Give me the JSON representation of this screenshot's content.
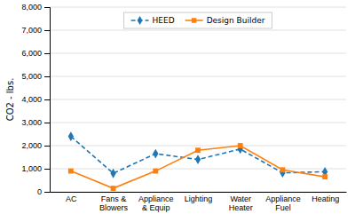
{
  "chart_data": {
    "type": "line",
    "categories": [
      "AC",
      "Fans &\nBlowers",
      "Appliance\n& Equip",
      "Lighting",
      "Water\nHeater",
      "Appliance\nFuel",
      "Heating"
    ],
    "series": [
      {
        "name": "HEED",
        "values": [
          2400,
          800,
          1650,
          1400,
          1850,
          820,
          870
        ],
        "marker": "diamond",
        "line_style": "dashed"
      },
      {
        "name": "Design Builder",
        "values": [
          900,
          150,
          900,
          1800,
          2000,
          950,
          650
        ],
        "marker": "square",
        "line_style": "solid"
      }
    ],
    "y_label": "CO2 - lbs.",
    "ylim": [
      0,
      8000
    ],
    "yticks": [
      0,
      {
        "value": 1000,
        "label": "1,000"
      },
      {
        "value": 2000,
        "label": "2,000"
      },
      {
        "value": 3000,
        "label": "3,000"
      },
      {
        "value": 4000,
        "label": "4,000"
      },
      {
        "value": 5000,
        "label": "5,000"
      },
      {
        "value": 6000,
        "label": "6,000"
      },
      {
        "value": 7000,
        "label": "7,000"
      },
      {
        "value": 8000,
        "label": "8,000"
      }
    ],
    "grid": true,
    "legend": "top"
  }
}
